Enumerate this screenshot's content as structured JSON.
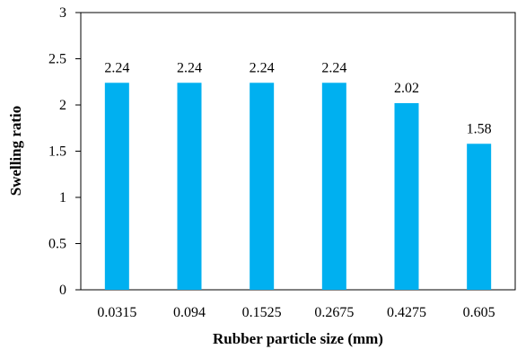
{
  "chart_data": {
    "type": "bar",
    "categories": [
      "0.0315",
      "0.094",
      "0.1525",
      "0.2675",
      "0.4275",
      "0.605"
    ],
    "values": [
      2.24,
      2.24,
      2.24,
      2.24,
      2.02,
      1.58
    ],
    "data_labels": [
      "2.24",
      "2.24",
      "2.24",
      "2.24",
      "2.02",
      "1.58"
    ],
    "xlabel": "Rubber particle size (mm)",
    "ylabel": "Swelling ratio",
    "ylim": [
      0,
      3
    ],
    "yticks": [
      0,
      0.5,
      1,
      1.5,
      2,
      2.5,
      3
    ],
    "ytick_labels": [
      "0",
      "0.5",
      "1",
      "1.5",
      "2",
      "2.5",
      "3"
    ],
    "bar_color": "#00B0F0",
    "grid": false
  }
}
